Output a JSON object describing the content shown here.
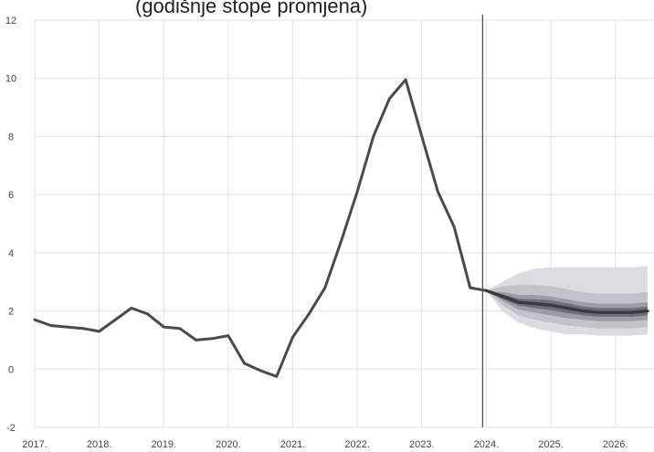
{
  "chart_data": {
    "type": "line",
    "title": "(godišnje stope promjena)",
    "xlabel": "",
    "ylabel": "",
    "ylim": [
      -2,
      12
    ],
    "yticks": [
      "12",
      "10",
      "8",
      "6",
      "4",
      "2",
      "0",
      "-2"
    ],
    "xticks": [
      "2017.",
      "2018.",
      "2019.",
      "2020.",
      "2021.",
      "2022.",
      "2023.",
      "2024.",
      "2025.",
      "2026."
    ],
    "grid": true,
    "legend": "none",
    "forecast_start": "2024 Q1",
    "colors": {
      "line": "#4a4a4a",
      "divider": "#555555",
      "fan_outer": "#dcdce0",
      "fan_mid": "#c2c2c8",
      "fan_inner": "#9c9ca4",
      "fan_core": "#6e6e78"
    },
    "series": [
      {
        "values": [
          [
            2017.0,
            1.7
          ],
          [
            2017.25,
            1.5
          ],
          [
            2017.5,
            1.45
          ],
          [
            2017.75,
            1.4
          ],
          [
            2018.0,
            1.3
          ],
          [
            2018.25,
            1.7
          ],
          [
            2018.5,
            2.1
          ],
          [
            2018.75,
            1.9
          ],
          [
            2019.0,
            1.45
          ],
          [
            2019.25,
            1.4
          ],
          [
            2019.5,
            1.0
          ],
          [
            2019.75,
            1.05
          ],
          [
            2020.0,
            1.15
          ],
          [
            2020.25,
            0.2
          ],
          [
            2020.5,
            -0.05
          ],
          [
            2020.75,
            -0.25
          ],
          [
            2021.0,
            1.1
          ],
          [
            2021.25,
            1.9
          ],
          [
            2021.5,
            2.8
          ],
          [
            2021.75,
            4.4
          ],
          [
            2022.0,
            6.1
          ],
          [
            2022.25,
            8.0
          ],
          [
            2022.5,
            9.3
          ],
          [
            2022.75,
            9.95
          ],
          [
            2023.0,
            8.0
          ],
          [
            2023.25,
            6.1
          ],
          [
            2023.5,
            4.9
          ],
          [
            2023.75,
            2.8
          ],
          [
            2024.0,
            2.7
          ]
        ]
      },
      {
        "values": [
          [
            2024.0,
            2.7
          ],
          [
            2024.25,
            2.5
          ],
          [
            2024.5,
            2.3
          ],
          [
            2024.75,
            2.25
          ],
          [
            2025.0,
            2.2
          ],
          [
            2025.25,
            2.1
          ],
          [
            2025.5,
            2.0
          ],
          [
            2025.75,
            1.95
          ],
          [
            2026.0,
            1.95
          ],
          [
            2026.25,
            1.95
          ],
          [
            2026.5,
            2.0
          ]
        ],
        "bands": [
          {
            "level": "outer",
            "lower": [
              2.7,
              2.0,
              1.6,
              1.4,
              1.3,
              1.2,
              1.2,
              1.15,
              1.15,
              1.15,
              1.2
            ],
            "upper": [
              2.7,
              3.0,
              3.3,
              3.45,
              3.5,
              3.5,
              3.5,
              3.5,
              3.5,
              3.5,
              3.55
            ]
          },
          {
            "level": "mid",
            "lower": [
              2.7,
              2.2,
              1.85,
              1.7,
              1.6,
              1.5,
              1.45,
              1.4,
              1.4,
              1.4,
              1.45
            ],
            "upper": [
              2.7,
              2.85,
              2.9,
              2.9,
              2.85,
              2.75,
              2.65,
              2.6,
              2.6,
              2.6,
              2.65
            ]
          },
          {
            "level": "inner",
            "lower": [
              2.7,
              2.35,
              2.05,
              1.95,
              1.85,
              1.75,
              1.7,
              1.65,
              1.65,
              1.65,
              1.7
            ],
            "upper": [
              2.7,
              2.65,
              2.55,
              2.55,
              2.5,
              2.4,
              2.3,
              2.25,
              2.25,
              2.25,
              2.3
            ]
          },
          {
            "level": "core",
            "lower": [
              2.7,
              2.42,
              2.18,
              2.1,
              2.03,
              1.93,
              1.85,
              1.8,
              1.8,
              1.8,
              1.85
            ],
            "upper": [
              2.7,
              2.58,
              2.42,
              2.4,
              2.37,
              2.27,
              2.15,
              2.1,
              2.1,
              2.1,
              2.15
            ]
          }
        ]
      }
    ]
  }
}
